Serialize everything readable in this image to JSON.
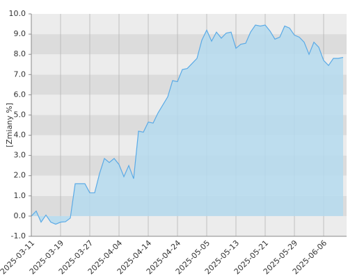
{
  "chart_data": {
    "type": "area",
    "y_label": "[Zmiany %]",
    "categories": [
      "2025-03-11",
      null,
      null,
      null,
      null,
      null,
      "2025-03-19",
      null,
      null,
      null,
      null,
      null,
      "2025-03-27",
      null,
      null,
      null,
      null,
      null,
      "2025-04-04",
      null,
      null,
      null,
      null,
      null,
      "2025-04-14",
      null,
      null,
      null,
      null,
      null,
      "2025-04-24",
      null,
      null,
      null,
      null,
      null,
      "2025-05-05",
      null,
      null,
      null,
      null,
      null,
      "2025-05-13",
      null,
      null,
      null,
      null,
      null,
      "2025-05-21",
      null,
      null,
      null,
      null,
      null,
      "2025-05-29",
      null,
      null,
      null,
      null,
      null,
      "2025-06-06",
      null,
      null,
      null,
      null
    ],
    "values": [
      0.0,
      0.25,
      -0.3,
      0.05,
      -0.3,
      -0.4,
      -0.3,
      -0.28,
      -0.1,
      1.6,
      1.6,
      1.6,
      1.15,
      1.15,
      2.1,
      2.85,
      2.65,
      2.85,
      2.55,
      1.95,
      2.5,
      1.85,
      4.2,
      4.15,
      4.65,
      4.6,
      5.1,
      5.5,
      5.9,
      6.7,
      6.65,
      7.25,
      7.3,
      7.55,
      7.8,
      8.7,
      9.2,
      8.65,
      9.1,
      8.8,
      9.05,
      9.1,
      8.3,
      8.5,
      8.55,
      9.1,
      9.45,
      9.4,
      9.45,
      9.15,
      8.75,
      8.85,
      9.4,
      9.3,
      8.95,
      8.85,
      8.6,
      8.0,
      8.6,
      8.35,
      7.7,
      7.45,
      7.8,
      7.8,
      7.85
    ],
    "color": "#5aaae6",
    "fill": "#b5dbee",
    "ylim": [
      -1,
      10
    ],
    "yticks": [
      {
        "value": -1,
        "label": "-1.0"
      },
      {
        "value": 0,
        "label": "0.0"
      },
      {
        "value": 1,
        "label": "1.0"
      },
      {
        "value": 2,
        "label": "2.0"
      },
      {
        "value": 3,
        "label": "3.0"
      },
      {
        "value": 4,
        "label": "4.0"
      },
      {
        "value": 5,
        "label": "5.0"
      },
      {
        "value": 6,
        "label": "6.0"
      },
      {
        "value": 7,
        "label": "7.0"
      },
      {
        "value": 8,
        "label": "8.0"
      },
      {
        "value": 9,
        "label": "9.0"
      },
      {
        "value": 10,
        "label": "10.0"
      }
    ],
    "band_colors": [
      "#ececec",
      "#dcdcdc"
    ],
    "grid_color": "#b4b4b4"
  }
}
